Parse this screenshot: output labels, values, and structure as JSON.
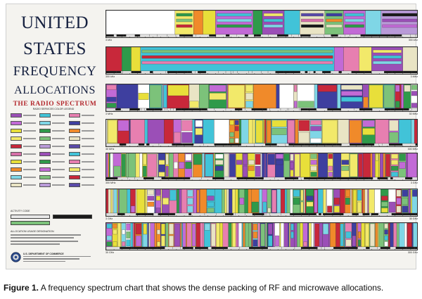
{
  "poster": {
    "title_lines": [
      "UNITED",
      "STATES",
      "FREQUENCY",
      "ALLOCATIONS"
    ],
    "subtitle": "THE RADIO SPECTRUM",
    "legend_title": "RADIO SERVICES COLOR LEGEND",
    "activity_title": "ACTIVITY CODE",
    "class_title": "ALLOCATION USAGE DESIGNATION",
    "department": "U.S. DEPARTMENT OF COMMERCE"
  },
  "colors": {
    "palette": [
      "#9b4fb7",
      "#c26ad6",
      "#e8df3a",
      "#f2e96a",
      "#41c3d8",
      "#7fd6e6",
      "#2f9a4a",
      "#7cc27a",
      "#c8283a",
      "#e77fb0",
      "#3e3f9f",
      "#f08a2a",
      "#e9e4c4",
      "#ffffff",
      "#b99ad8",
      "#5a4aa8",
      "#d66fa8",
      "#1a1a1a"
    ],
    "caption_text": "#111111",
    "title_text": "#15203f",
    "subtitle_text": "#b3282d"
  },
  "bands": [
    {
      "id": 1,
      "left_label": "3 kHz",
      "right_label": "300 kHz"
    },
    {
      "id": 2,
      "left_label": "300 kHz",
      "right_label": "3 MHz"
    },
    {
      "id": 3,
      "left_label": "3 MHz",
      "right_label": "30 MHz"
    },
    {
      "id": 4,
      "left_label": "30 MHz",
      "right_label": "300 MHz"
    },
    {
      "id": 5,
      "left_label": "300 MHz",
      "right_label": "3 GHz"
    },
    {
      "id": 6,
      "left_label": "3 GHz",
      "right_label": "30 GHz"
    },
    {
      "id": 7,
      "left_label": "30 GHz",
      "right_label": "300 GHz"
    }
  ],
  "caption": {
    "label": "Figure 1.",
    "text": " A frequency spectrum chart that shows the dense packing of RF and microwave allocations."
  }
}
